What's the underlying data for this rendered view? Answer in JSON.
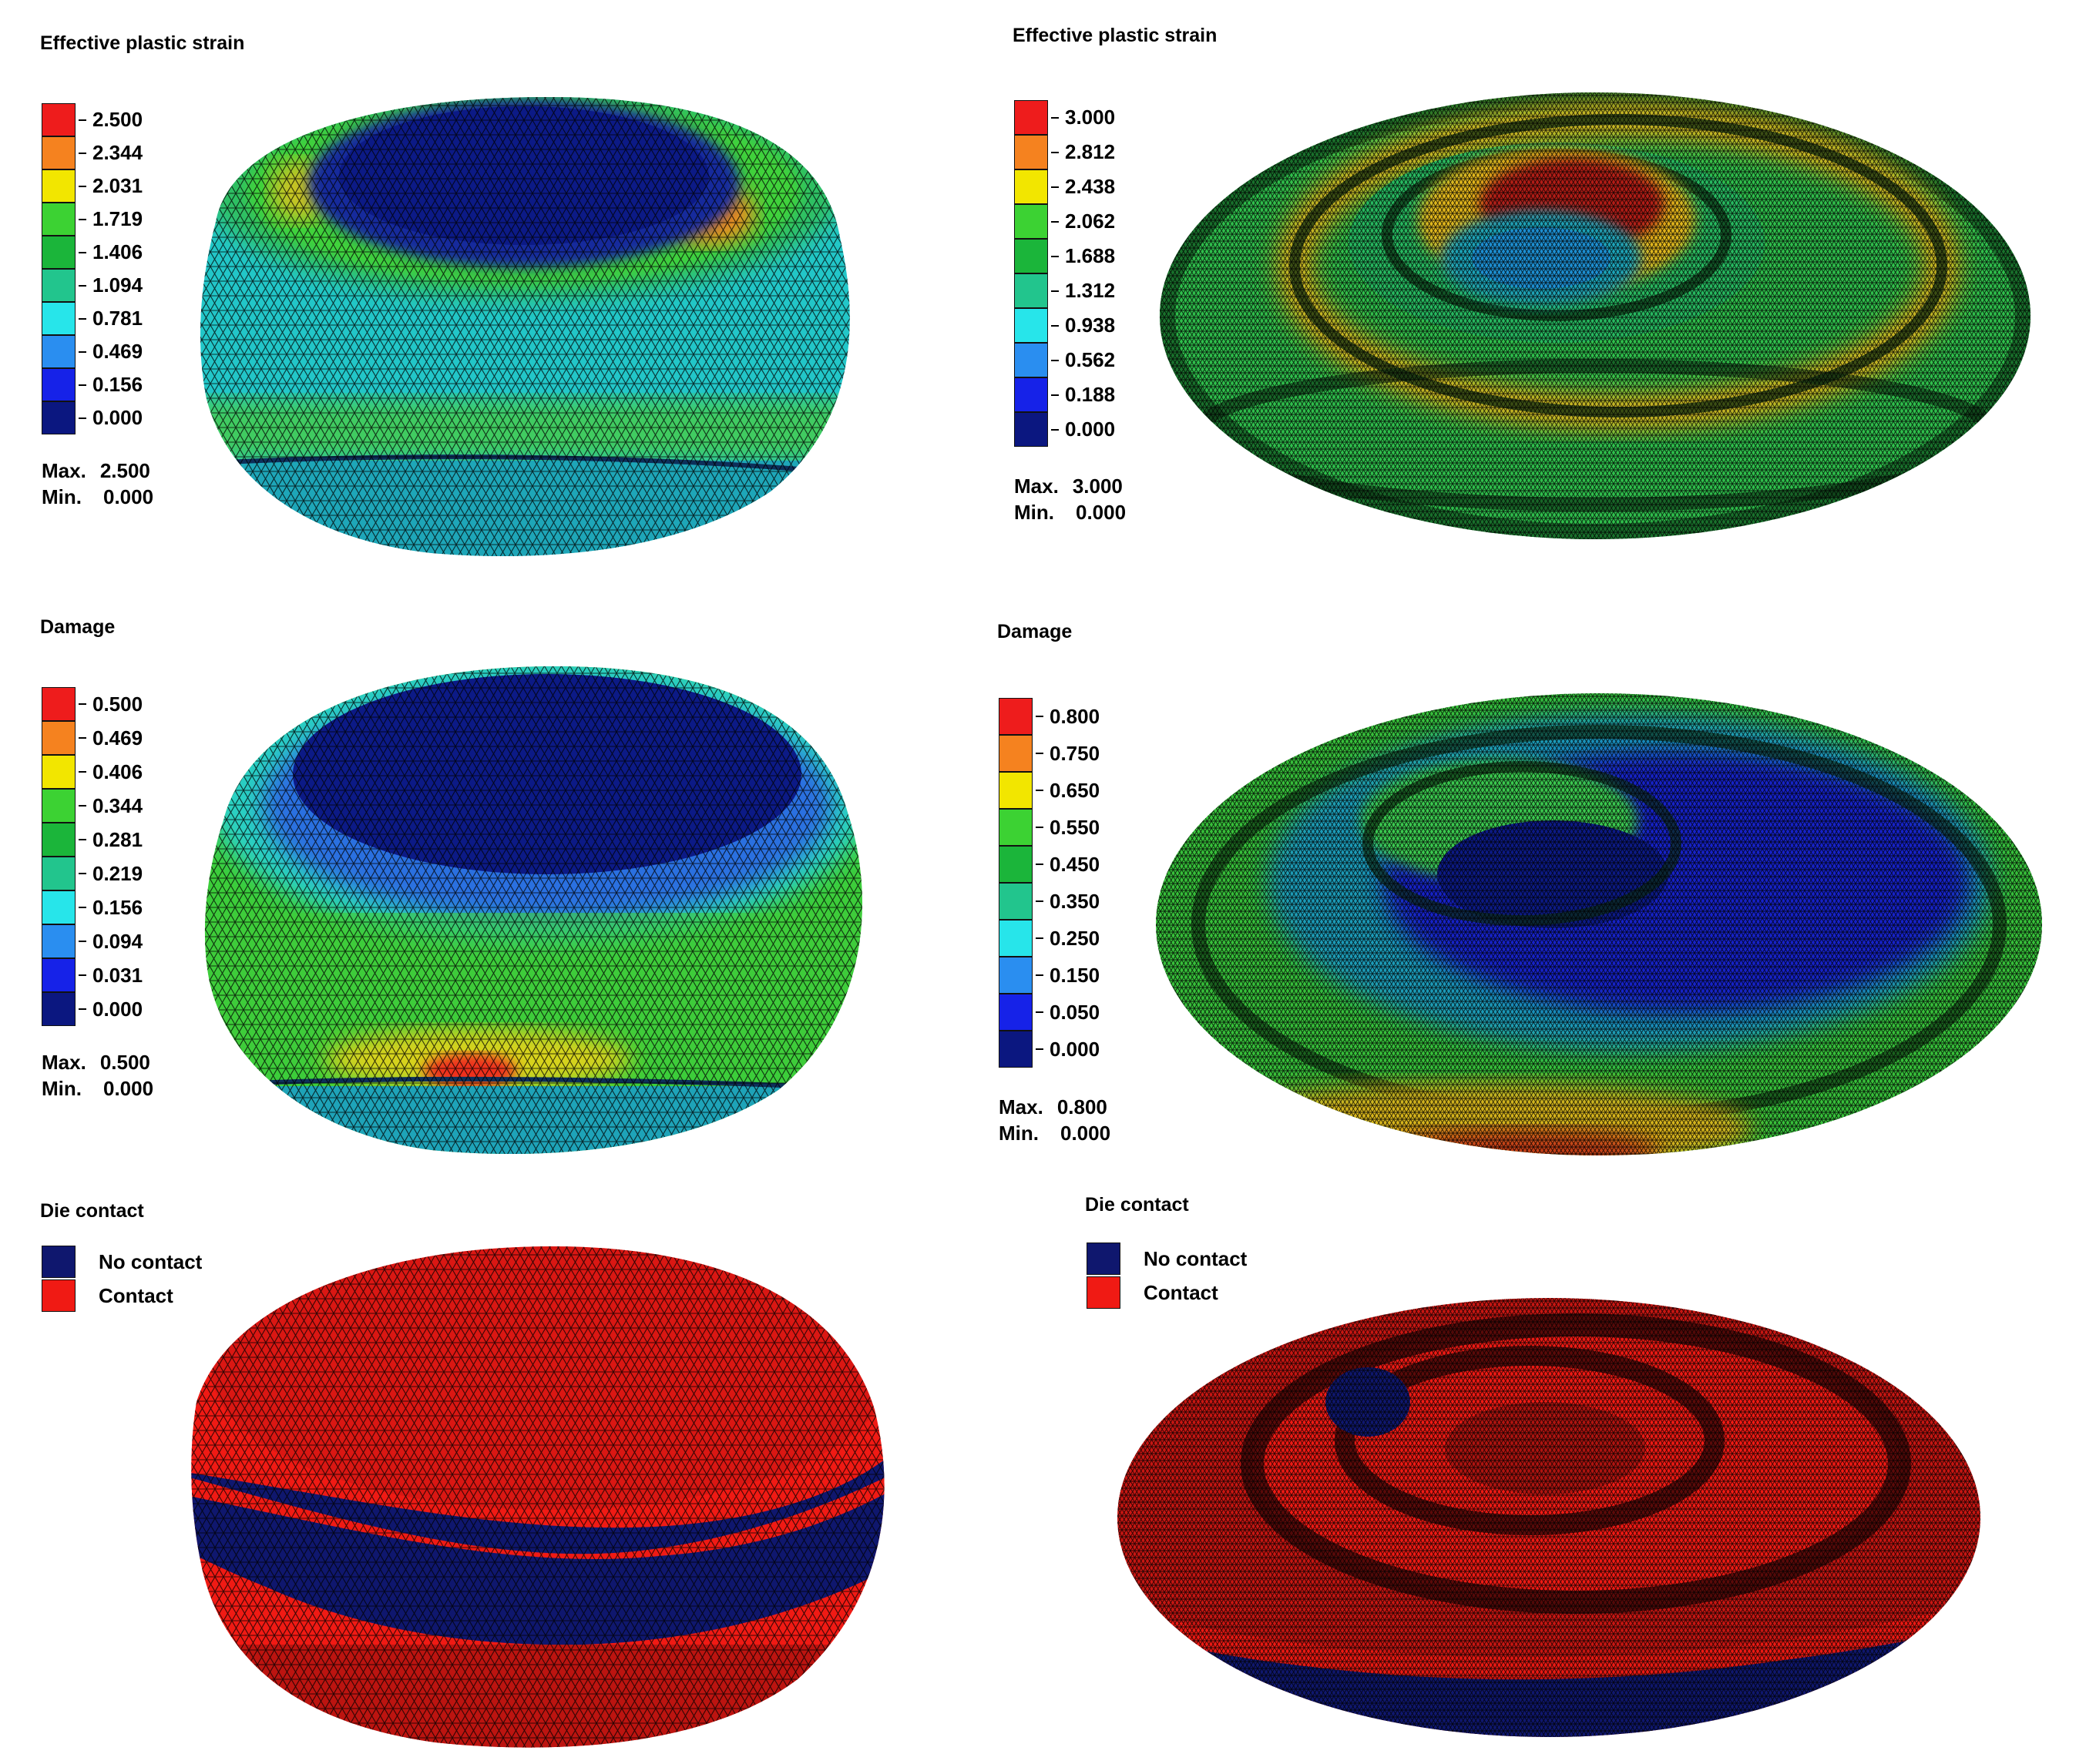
{
  "panels": [
    {
      "id": "tl",
      "title": "Effective plastic strain",
      "legend": {
        "labels": [
          "2.500",
          "2.344",
          "2.031",
          "1.719",
          "1.406",
          "1.094",
          "0.781",
          "0.469",
          "0.156",
          "0.000"
        ],
        "colors": [
          "#ee1c1c",
          "#f5821f",
          "#f2e600",
          "#3cd233",
          "#1bb53a",
          "#22c58d",
          "#27e5ea",
          "#2a8ef0",
          "#1622e8",
          "#0b1780"
        ]
      },
      "max_label": "Max.",
      "max_value": "2.500",
      "min_label": "Min.",
      "min_value": "0.000"
    },
    {
      "id": "tr",
      "title": "Effective plastic strain",
      "legend": {
        "labels": [
          "3.000",
          "2.812",
          "2.438",
          "2.062",
          "1.688",
          "1.312",
          "0.938",
          "0.562",
          "0.188",
          "0.000"
        ],
        "colors": [
          "#ee1c1c",
          "#f5821f",
          "#f2e600",
          "#3cd233",
          "#1bb53a",
          "#22c58d",
          "#27e5ea",
          "#2a8ef0",
          "#1622e8",
          "#0b1780"
        ]
      },
      "max_label": "Max.",
      "max_value": "3.000",
      "min_label": "Min.",
      "min_value": "0.000"
    },
    {
      "id": "ml",
      "title": "Damage",
      "legend": {
        "labels": [
          "0.500",
          "0.469",
          "0.406",
          "0.344",
          "0.281",
          "0.219",
          "0.156",
          "0.094",
          "0.031",
          "0.000"
        ],
        "colors": [
          "#ee1c1c",
          "#f5821f",
          "#f2e600",
          "#3cd233",
          "#1bb53a",
          "#22c58d",
          "#27e5ea",
          "#2a8ef0",
          "#1622e8",
          "#0b1780"
        ]
      },
      "max_label": "Max.",
      "max_value": "0.500",
      "min_label": "Min.",
      "min_value": "0.000"
    },
    {
      "id": "mr",
      "title": "Damage",
      "legend": {
        "labels": [
          "0.800",
          "0.750",
          "0.650",
          "0.550",
          "0.450",
          "0.350",
          "0.250",
          "0.150",
          "0.050",
          "0.000"
        ],
        "colors": [
          "#ee1c1c",
          "#f5821f",
          "#f2e600",
          "#3cd233",
          "#1bb53a",
          "#22c58d",
          "#27e5ea",
          "#2a8ef0",
          "#1622e8",
          "#0b1780"
        ]
      },
      "max_label": "Max.",
      "max_value": "0.800",
      "min_label": "Min.",
      "min_value": "0.000"
    },
    {
      "id": "bl",
      "title": "Die contact",
      "contact_legend": [
        {
          "label": "No contact",
          "color": "#0f176e"
        },
        {
          "label": "Contact",
          "color": "#f01a14"
        }
      ]
    },
    {
      "id": "br",
      "title": "Die contact",
      "contact_legend": [
        {
          "label": "No contact",
          "color": "#0f176e"
        },
        {
          "label": "Contact",
          "color": "#f01a14"
        }
      ]
    }
  ],
  "mesh_line_color": "#000000"
}
